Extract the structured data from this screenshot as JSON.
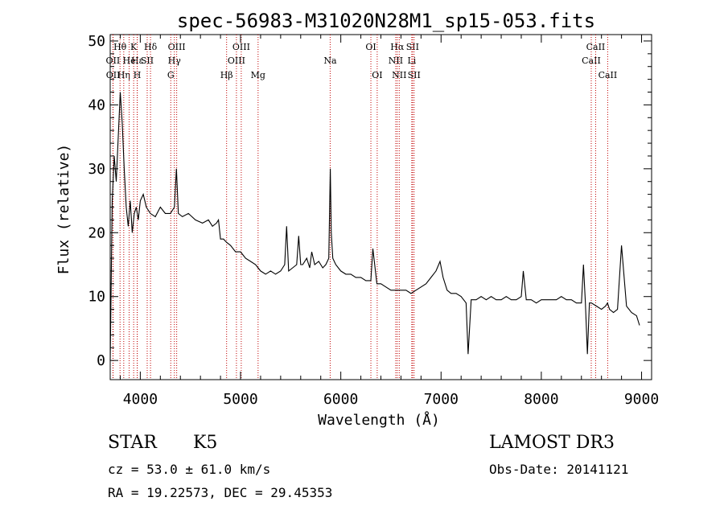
{
  "chart_data": {
    "type": "line",
    "title": "spec-56983-M31020N28M1_sp15-053.fits",
    "xlabel": "Wavelength (Å)",
    "ylabel": "Flux (relative)",
    "xlim": [
      3700,
      9100
    ],
    "ylim": [
      -3,
      51
    ],
    "xticks": [
      4000,
      5000,
      6000,
      7000,
      8000,
      9000
    ],
    "yticks": [
      0,
      10,
      20,
      30,
      40,
      50
    ],
    "grid": false,
    "series": [
      {
        "name": "flux",
        "x": [
          3700,
          3720,
          3740,
          3760,
          3780,
          3800,
          3820,
          3840,
          3860,
          3880,
          3900,
          3920,
          3940,
          3960,
          3980,
          4000,
          4030,
          4060,
          4100,
          4150,
          4200,
          4250,
          4300,
          4340,
          4360,
          4380,
          4420,
          4480,
          4550,
          4620,
          4680,
          4720,
          4760,
          4780,
          4800,
          4830,
          4860,
          4900,
          4950,
          5000,
          5050,
          5100,
          5150,
          5200,
          5250,
          5300,
          5350,
          5400,
          5440,
          5460,
          5480,
          5520,
          5560,
          5580,
          5600,
          5620,
          5660,
          5690,
          5710,
          5740,
          5780,
          5820,
          5850,
          5880,
          5895,
          5905,
          5920,
          5950,
          6000,
          6050,
          6100,
          6150,
          6200,
          6250,
          6300,
          6320,
          6360,
          6400,
          6450,
          6500,
          6550,
          6600,
          6650,
          6700,
          6750,
          6800,
          6850,
          6900,
          6950,
          6990,
          7020,
          7060,
          7100,
          7150,
          7200,
          7250,
          7270,
          7300,
          7350,
          7400,
          7450,
          7500,
          7550,
          7600,
          7650,
          7700,
          7750,
          7800,
          7820,
          7850,
          7900,
          7950,
          8000,
          8050,
          8100,
          8150,
          8200,
          8250,
          8300,
          8350,
          8400,
          8420,
          8440,
          8460,
          8480,
          8500,
          8550,
          8600,
          8640,
          8660,
          8680,
          8720,
          8760,
          8800,
          8850,
          8900,
          8950,
          8980
        ],
        "y": [
          0,
          25,
          32,
          28,
          35,
          42,
          37,
          30,
          24,
          21,
          25,
          20,
          23,
          24,
          22,
          25,
          26,
          24,
          23,
          22.5,
          24,
          23,
          23,
          24,
          30,
          23,
          22.5,
          23,
          22,
          21.5,
          22,
          21,
          21.5,
          22,
          19,
          19,
          18.5,
          18,
          17,
          17,
          16,
          15.5,
          15,
          14,
          13.5,
          14,
          13.5,
          14,
          15,
          21,
          14,
          14.5,
          15,
          19.5,
          15,
          15,
          16,
          14.5,
          17,
          15,
          15.5,
          14.5,
          15,
          16,
          30,
          20,
          16,
          15,
          14,
          13.5,
          13.5,
          13,
          13,
          12.5,
          12.5,
          17.5,
          12,
          12,
          11.5,
          11,
          11,
          11,
          11,
          10.5,
          11,
          11.5,
          12,
          13,
          14,
          15.5,
          13,
          11,
          10.5,
          10.5,
          10,
          9,
          1,
          9.5,
          9.5,
          10,
          9.5,
          10,
          9.5,
          9.5,
          10,
          9.5,
          9.5,
          10,
          14,
          9.5,
          9.5,
          9,
          9.5,
          9.5,
          9.5,
          9.5,
          10,
          9.5,
          9.5,
          9,
          9,
          15,
          9,
          1,
          9,
          9,
          8.5,
          8,
          8.5,
          9,
          8,
          7.5,
          8,
          18,
          8.5,
          7.5,
          7,
          5.5
        ]
      }
    ],
    "line_identifications": [
      {
        "label": "Hα",
        "wavelength": 6563,
        "row": 1
      },
      {
        "label": "Hβ",
        "wavelength": 4861,
        "row": 3
      },
      {
        "label": "Hγ",
        "wavelength": 4340,
        "row": 2
      },
      {
        "label": "Hδ",
        "wavelength": 4102,
        "row": 1
      },
      {
        "label": "Hε",
        "wavelength": 3970,
        "row": 2
      },
      {
        "label": "Hη",
        "wavelength": 3835,
        "row": 3
      },
      {
        "label": "Hθ",
        "wavelength": 3798,
        "row": 1
      },
      {
        "label": "He",
        "wavelength": 3889,
        "row": 2
      },
      {
        "label": "K",
        "wavelength": 3934,
        "row": 1
      },
      {
        "label": "H",
        "wavelength": 3969,
        "row": 3
      },
      {
        "label": "SII",
        "wavelength": 4069,
        "row": 2
      },
      {
        "label": "G",
        "wavelength": 4304,
        "row": 3
      },
      {
        "label": "OIII",
        "wavelength": 4363,
        "row": 1
      },
      {
        "label": "OIII",
        "wavelength": 4959,
        "row": 2
      },
      {
        "label": "OIII",
        "wavelength": 5007,
        "row": 1
      },
      {
        "label": "OII",
        "wavelength": 3727,
        "row": 2
      },
      {
        "label": "OII",
        "wavelength": 3729,
        "row": 3
      },
      {
        "label": "Mg",
        "wavelength": 5175,
        "row": 3
      },
      {
        "label": "Na",
        "wavelength": 5894,
        "row": 2
      },
      {
        "label": "OI",
        "wavelength": 6300,
        "row": 1
      },
      {
        "label": "OI",
        "wavelength": 6363,
        "row": 3
      },
      {
        "label": "NII",
        "wavelength": 6548,
        "row": 2
      },
      {
        "label": "NII",
        "wavelength": 6583,
        "row": 3
      },
      {
        "label": "SII",
        "wavelength": 6716,
        "row": 1
      },
      {
        "label": "Li",
        "wavelength": 6708,
        "row": 2
      },
      {
        "label": "SII",
        "wavelength": 6731,
        "row": 3
      },
      {
        "label": "CaII",
        "wavelength": 8498,
        "row": 2
      },
      {
        "label": "CaII",
        "wavelength": 8542,
        "row": 1
      },
      {
        "label": "CaII",
        "wavelength": 8662,
        "row": 3
      }
    ]
  },
  "info": {
    "object_class": "STAR",
    "subclass": "K5",
    "survey": "LAMOST DR3",
    "redshift_text": "cz = 53.0 ± 61.0 km/s",
    "obs_date": "Obs-Date: 20141121",
    "coords": "RA =  19.22573, DEC =  29.45353"
  }
}
